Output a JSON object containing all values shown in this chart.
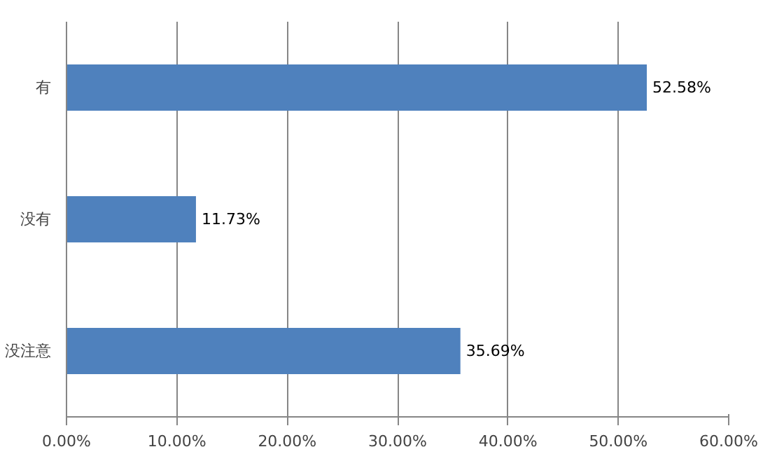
{
  "chart_data": {
    "type": "bar",
    "orientation": "horizontal",
    "categories": [
      "有",
      "没有",
      "没注意"
    ],
    "values": [
      52.58,
      11.73,
      35.69
    ],
    "color": "#4f81bd",
    "value_labels": [
      "52.58%",
      "11.73%",
      "35.69%"
    ],
    "xlim": [
      0,
      60
    ],
    "xticks": [
      {
        "value": 0,
        "label": "0.00%"
      },
      {
        "value": 10,
        "label": "10.00%"
      },
      {
        "value": 20,
        "label": "20.00%"
      },
      {
        "value": 30,
        "label": "30.00%"
      },
      {
        "value": 40,
        "label": "40.00%"
      },
      {
        "value": 50,
        "label": "50.00%"
      },
      {
        "value": 60,
        "label": "60.00%"
      }
    ],
    "grid": "x"
  }
}
